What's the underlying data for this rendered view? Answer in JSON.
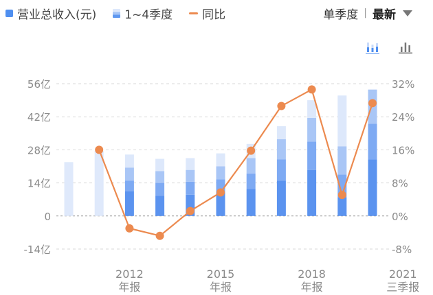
{
  "legend": {
    "total": "营业总收入(元)",
    "quarters": "1~4季度",
    "yoy": "同比"
  },
  "controls": {
    "season": "单季度",
    "separator": "|",
    "latest": "最新"
  },
  "colors": {
    "annual": "#dfe9fb",
    "q_light": "#dde8fb",
    "q_mid": "#a9c6f6",
    "q_strong": "#7eaaf3",
    "q_base": "#5b93ef",
    "line": "#ec8a4f",
    "grid": "#d9d9d9",
    "axis_text": "#8a8a8a"
  },
  "chart_data": {
    "type": "bar",
    "left_axis": {
      "ticks": [
        56,
        42,
        28,
        14,
        0,
        -14
      ],
      "tick_labels": [
        "56亿",
        "42亿",
        "28亿",
        "14亿",
        "0",
        "-14亿"
      ],
      "range": [
        -14,
        56
      ]
    },
    "right_axis": {
      "ticks": [
        32,
        24,
        16,
        8,
        0,
        -8
      ],
      "tick_labels": [
        "32%",
        "24%",
        "16%",
        "8%",
        "0%",
        "-8%"
      ],
      "range": [
        -8,
        32
      ]
    },
    "x_labels": [
      {
        "at": 2,
        "line1": "2012",
        "line2": "年报"
      },
      {
        "at": 5,
        "line1": "2015",
        "line2": "年报"
      },
      {
        "at": 8,
        "line1": "2018",
        "line2": "年报"
      },
      {
        "at": 11,
        "line1": "2021",
        "line2": "三季报"
      }
    ],
    "bars": [
      {
        "kind": "annual",
        "total": 22.8
      },
      {
        "kind": "annual",
        "total": 27.5
      },
      {
        "kind": "quarterly",
        "q": [
          10.5,
          4.5,
          5.5,
          5.5
        ]
      },
      {
        "kind": "quarterly",
        "q": [
          8.5,
          5.5,
          5.0,
          5.2
        ]
      },
      {
        "kind": "quarterly",
        "q": [
          9.0,
          5.5,
          5.0,
          5.0
        ]
      },
      {
        "kind": "quarterly",
        "q": [
          10.0,
          5.5,
          5.5,
          5.5
        ]
      },
      {
        "kind": "quarterly",
        "q": [
          11.5,
          6.5,
          6.5,
          6.0
        ]
      },
      {
        "kind": "quarterly",
        "q": [
          15.0,
          9.0,
          8.5,
          5.5
        ]
      },
      {
        "kind": "quarterly",
        "q": [
          19.5,
          12.0,
          10.0,
          7.5
        ]
      },
      {
        "kind": "quarterly",
        "q": [
          8.0,
          9.5,
          12.0,
          21.5
        ]
      },
      {
        "kind": "quarterly",
        "q": [
          24.0,
          15.0,
          14.5
        ]
      }
    ],
    "yoy": [
      16.0,
      -3.0,
      -4.8,
      1.2,
      5.7,
      15.8,
      26.6,
      30.6,
      5.1,
      27.3
    ],
    "yoy_start_index": 1
  }
}
